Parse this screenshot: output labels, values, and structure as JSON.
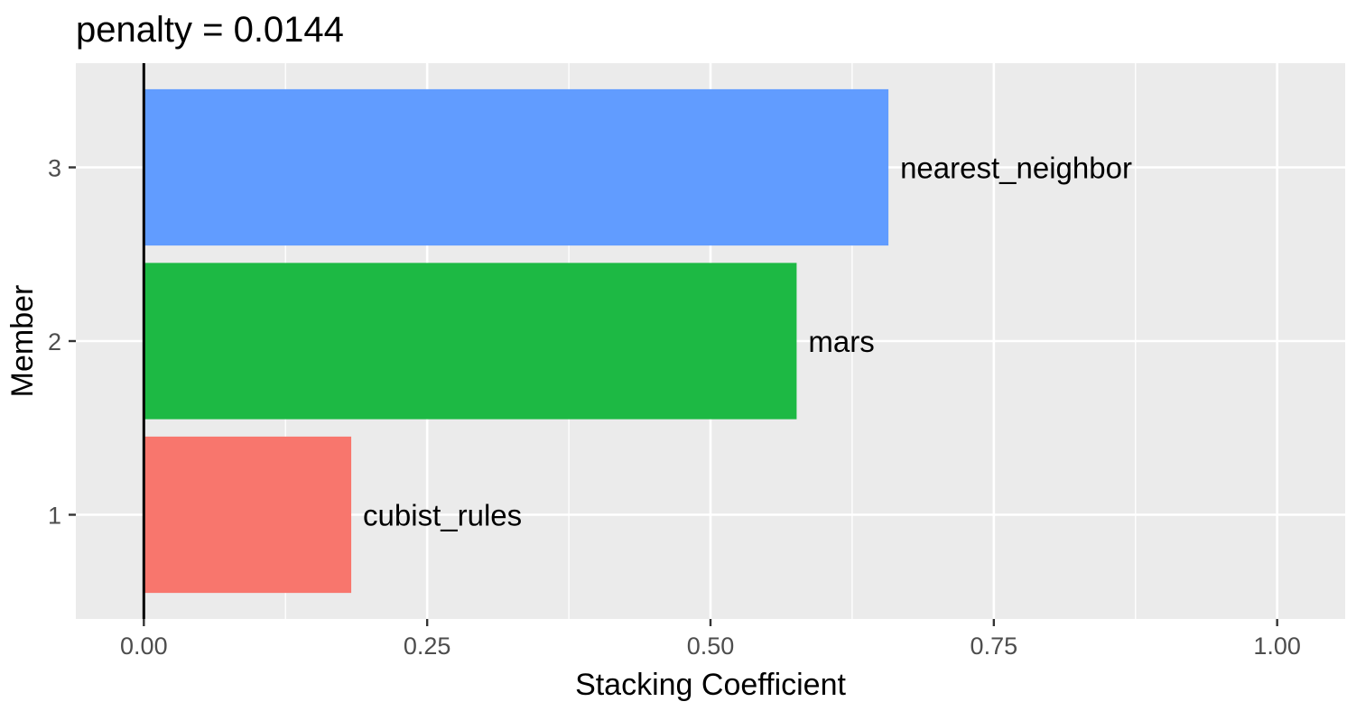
{
  "chart_data": {
    "type": "bar",
    "orientation": "horizontal",
    "title": "penalty = 0.0144",
    "xlabel": "Stacking Coefficient",
    "ylabel": "Member",
    "xlim": [
      -0.06,
      1.06
    ],
    "x_ticks": [
      "0.00",
      "0.25",
      "0.50",
      "0.75",
      "1.00"
    ],
    "x_tick_values": [
      0,
      0.25,
      0.5,
      0.75,
      1.0
    ],
    "y_ticks": [
      "1",
      "2",
      "3"
    ],
    "categories": [
      "1",
      "2",
      "3"
    ],
    "values": [
      0.183,
      0.576,
      0.657
    ],
    "bar_labels": [
      "cubist_rules",
      "mars",
      "nearest_neighbor"
    ],
    "colors": [
      "#F8766D",
      "#1DB944",
      "#619CFF"
    ],
    "panel_background": "#EBEBEB",
    "grid": true,
    "zero_line": true
  }
}
